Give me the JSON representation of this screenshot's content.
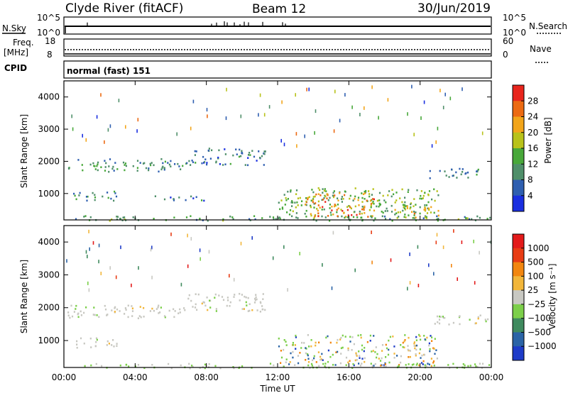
{
  "header": {
    "station": "Clyde River (fitACF)",
    "beam": "Beam 12",
    "date": "30/Jun/2019"
  },
  "strip1": {
    "left_label": "N.Sky",
    "left_top": "10^5",
    "left_bottom": "10^0",
    "right_top": "10^5",
    "right_bottom": "10^0",
    "right_label": "N.Search"
  },
  "strip2": {
    "left_label_1": "Freq.",
    "left_label_2": "[MHz]",
    "left_top": "18",
    "left_bottom": "8",
    "right_top": "60",
    "right_bottom": "0",
    "right_label": "Nave"
  },
  "strip3": {
    "left_label": "CPID",
    "text": "normal (fast) 151"
  },
  "chart_data": [
    {
      "type": "heatmap",
      "name": "power",
      "ylabel": "Slant Range [km]",
      "ylim": [
        180,
        4500
      ],
      "yticks": [
        "1000",
        "2000",
        "3000",
        "4000"
      ],
      "xlim": [
        0,
        24
      ],
      "colorbar": {
        "label": "Power [dB]",
        "ticks": [
          "4",
          "8",
          "12",
          "16",
          "20",
          "24",
          "28"
        ],
        "range": [
          0,
          32
        ],
        "colors": [
          "#1a2fe0",
          "#2f5fb0",
          "#4f8f6a",
          "#48a83a",
          "#b8c21a",
          "#f2a51a",
          "#ec6a12",
          "#e8251c"
        ]
      },
      "bands": [
        {
          "t": [
            0.2,
            6.8
          ],
          "r": [
            1700,
            2100
          ],
          "v": 10
        },
        {
          "t": [
            6.8,
            11.3
          ],
          "r": [
            1900,
            2450
          ],
          "v": 8
        },
        {
          "t": [
            0.5,
            3.0
          ],
          "r": [
            780,
            1100
          ],
          "v": 9
        },
        {
          "t": [
            5.0,
            8.0
          ],
          "r": [
            780,
            950
          ],
          "v": 8
        },
        {
          "t": [
            12.0,
            21.0
          ],
          "r": [
            250,
            1200
          ],
          "v": 14
        },
        {
          "t": [
            13.5,
            17.5
          ],
          "r": [
            300,
            1050
          ],
          "v": 24
        },
        {
          "t": [
            18.5,
            21.0
          ],
          "r": [
            280,
            650
          ],
          "v": 20
        },
        {
          "t": [
            20.5,
            23.8
          ],
          "r": [
            1500,
            1800
          ],
          "v": 8
        },
        {
          "t": [
            0,
            24
          ],
          "r": [
            180,
            330
          ],
          "v": 12
        }
      ]
    },
    {
      "type": "heatmap",
      "name": "velocity",
      "ylabel": "Slant Range [km]",
      "ylim": [
        180,
        4500
      ],
      "yticks": [
        "1000",
        "2000",
        "3000",
        "4000"
      ],
      "xlim": [
        0,
        24
      ],
      "xticks": [
        "00:00",
        "04:00",
        "08:00",
        "12:00",
        "16:00",
        "20:00",
        "00:00"
      ],
      "xlabel": "Time UT",
      "colorbar": {
        "label": "Velocity [m s⁻¹]",
        "ticks": [
          "1000",
          "500",
          "100",
          "25",
          "−25",
          "−100",
          "−500",
          "−1000"
        ],
        "colors": [
          "#1e3cc8",
          "#2b64a6",
          "#3f8a5e",
          "#7ccf4a",
          "#c8c8c2",
          "#f2b63a",
          "#f2860f",
          "#e83c14",
          "#e31a1a"
        ]
      },
      "bands": [
        {
          "t": [
            0.2,
            6.8
          ],
          "r": [
            1700,
            2100
          ],
          "v": "ground"
        },
        {
          "t": [
            6.8,
            11.3
          ],
          "r": [
            1900,
            2450
          ],
          "v": "ground"
        },
        {
          "t": [
            0.5,
            3.0
          ],
          "r": [
            780,
            1100
          ],
          "v": "ground"
        },
        {
          "t": [
            12.0,
            21.0
          ],
          "r": [
            250,
            1200
          ],
          "v": "mixed"
        },
        {
          "t": [
            20.5,
            23.8
          ],
          "r": [
            1500,
            1800
          ],
          "v": "ground"
        },
        {
          "t": [
            0,
            24
          ],
          "r": [
            180,
            330
          ],
          "v": "low"
        }
      ]
    }
  ]
}
